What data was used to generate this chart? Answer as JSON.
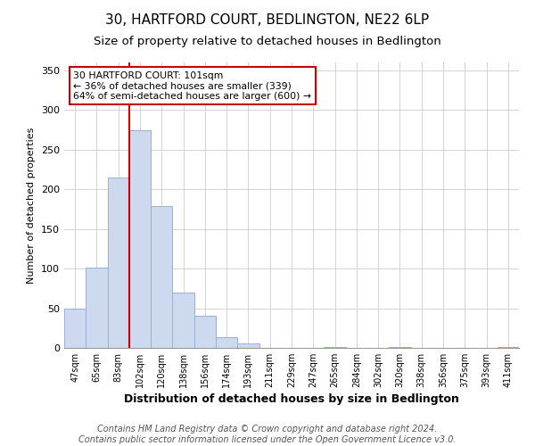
{
  "title": "30, HARTFORD COURT, BEDLINGTON, NE22 6LP",
  "subtitle": "Size of property relative to detached houses in Bedlington",
  "xlabel": "Distribution of detached houses by size in Bedlington",
  "ylabel": "Number of detached properties",
  "bar_labels": [
    "47sqm",
    "65sqm",
    "83sqm",
    "102sqm",
    "120sqm",
    "138sqm",
    "156sqm",
    "174sqm",
    "193sqm",
    "211sqm",
    "229sqm",
    "247sqm",
    "265sqm",
    "284sqm",
    "302sqm",
    "320sqm",
    "338sqm",
    "356sqm",
    "375sqm",
    "393sqm",
    "411sqm"
  ],
  "bar_values": [
    49,
    101,
    215,
    274,
    179,
    70,
    41,
    14,
    6,
    0,
    0,
    0,
    1,
    0,
    0,
    1,
    0,
    0,
    0,
    0,
    1
  ],
  "bar_color": "#cdd9ee",
  "bar_edge_color": "#9ab0d0",
  "vline_x": 3,
  "vline_color": "#cc0000",
  "annotation_title": "30 HARTFORD COURT: 101sqm",
  "annotation_line1": "← 36% of detached houses are smaller (339)",
  "annotation_line2": "64% of semi-detached houses are larger (600) →",
  "annotation_box_color": "#ffffff",
  "annotation_box_edge": "#cc0000",
  "ylim": [
    0,
    360
  ],
  "yticks": [
    0,
    50,
    100,
    150,
    200,
    250,
    300,
    350
  ],
  "footer1": "Contains HM Land Registry data © Crown copyright and database right 2024.",
  "footer2": "Contains public sector information licensed under the Open Government Licence v3.0.",
  "background_color": "#ffffff",
  "plot_background": "#ffffff",
  "title_fontsize": 11,
  "subtitle_fontsize": 9.5,
  "xlabel_fontsize": 9,
  "ylabel_fontsize": 8,
  "footer_fontsize": 7
}
